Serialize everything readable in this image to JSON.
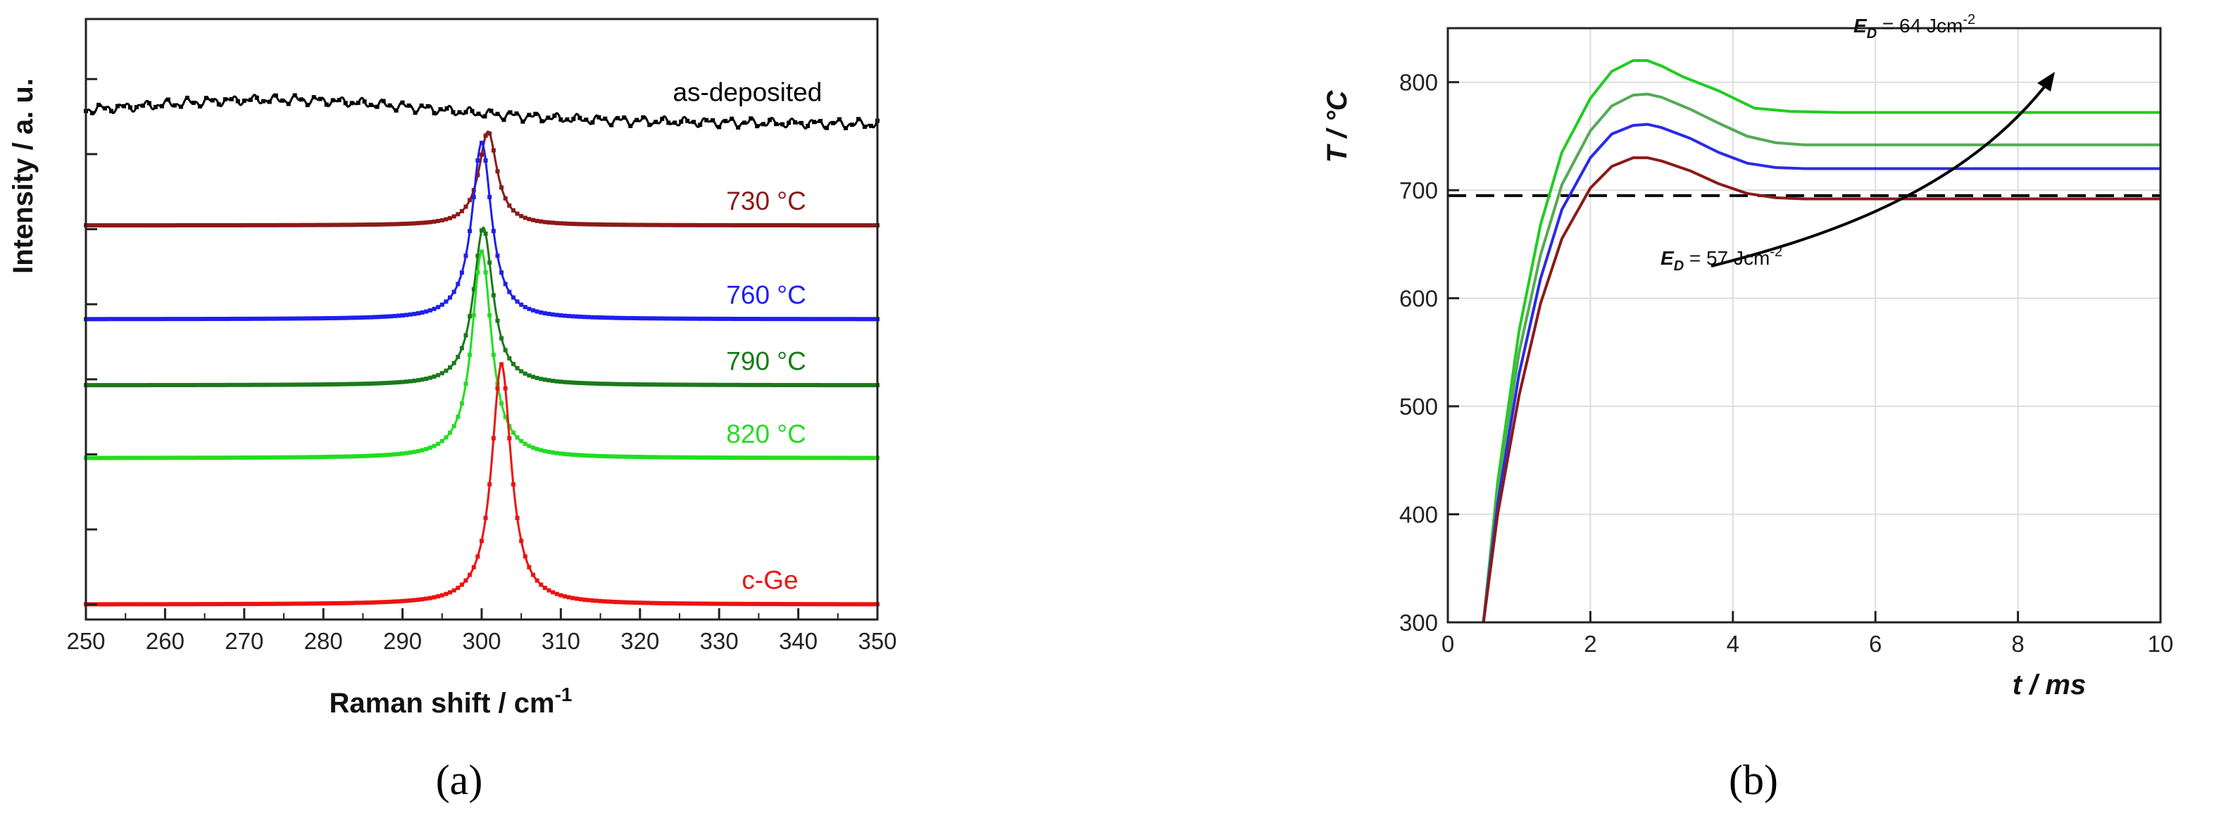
{
  "chart_data": [
    {
      "type": "line",
      "panel_label": "(a)",
      "xlabel": "Raman shift / cm",
      "xlabel_superscript": "-1",
      "ylabel": "Intensity / a. u.",
      "xlim": [
        250,
        350
      ],
      "x_ticks": [
        250,
        260,
        270,
        280,
        290,
        300,
        310,
        320,
        330,
        340,
        350
      ],
      "y_ticks": [
        0,
        1,
        2,
        3,
        4,
        5,
        6,
        7
      ],
      "ylim": [
        -0.2,
        7.8
      ],
      "y_tick_labels_shown": false,
      "grid": false,
      "stacked_offset_spectra": true,
      "series": [
        {
          "name": "as-deposited",
          "color": "#000000",
          "baseline": 6.5,
          "broad_amplitude": 0.25,
          "broad_center": 275,
          "broad_width": 25,
          "tail": -0.1
        },
        {
          "name": "730 °C",
          "color": "#8b1a1a",
          "baseline": 5.05,
          "peak_center": 300.8,
          "peak_height": 1.25,
          "fwhm": 2.8
        },
        {
          "name": "760 °C",
          "color": "#1f1ff0",
          "baseline": 3.8,
          "peak_center": 300.0,
          "peak_height": 2.35,
          "fwhm": 3.0
        },
        {
          "name": "790 °C",
          "color": "#1a7a1a",
          "baseline": 2.92,
          "peak_center": 300.2,
          "peak_height": 2.1,
          "fwhm": 3.0
        },
        {
          "name": "820 °C",
          "color": "#22dd22",
          "baseline": 1.95,
          "peak_center": 300.0,
          "peak_height": 2.75,
          "fwhm": 3.0
        },
        {
          "name": "c-Ge",
          "color": "#ee1111",
          "baseline": 0.0,
          "peak_center": 302.5,
          "peak_height": 3.2,
          "fwhm": 3.0
        }
      ]
    },
    {
      "type": "line",
      "panel_label": "(b)",
      "xlabel": "t / ms",
      "ylabel": "T / °C",
      "xlim": [
        0,
        10
      ],
      "ylim": [
        300,
        850
      ],
      "x_ticks": [
        0,
        2,
        4,
        6,
        8,
        10
      ],
      "y_ticks": [
        300,
        400,
        500,
        600,
        700,
        800
      ],
      "grid": true,
      "reference_line": {
        "y": 695,
        "style": "dashed",
        "color": "#000000"
      },
      "annotations": [
        {
          "text_prefix": "E",
          "text_subscript": "D",
          "text_suffix": " = 64 Jcm",
          "text_superscript": "-2"
        },
        {
          "text_prefix": "E",
          "text_subscript": "D",
          "text_suffix": " = 57 Jcm",
          "text_superscript": "-2"
        }
      ],
      "series": [
        {
          "color": "#22cc22",
          "x": [
            0.5,
            0.7,
            1.0,
            1.3,
            1.6,
            2.0,
            2.3,
            2.6,
            2.8,
            3.0,
            3.3,
            3.8,
            4.3,
            4.8,
            5.5,
            6.5,
            8.0,
            10.0
          ],
          "y": [
            300,
            430,
            570,
            668,
            735,
            785,
            810,
            820,
            820,
            815,
            805,
            792,
            776,
            773,
            772,
            772,
            772,
            772
          ]
        },
        {
          "color": "#55aa55",
          "x": [
            0.5,
            0.7,
            1.0,
            1.3,
            1.6,
            2.0,
            2.3,
            2.6,
            2.8,
            3.0,
            3.4,
            3.8,
            4.2,
            4.6,
            5.0,
            6.0,
            8.0,
            10.0
          ],
          "y": [
            300,
            420,
            550,
            640,
            705,
            755,
            778,
            788,
            789,
            786,
            775,
            762,
            750,
            744,
            742,
            742,
            742,
            742
          ]
        },
        {
          "color": "#2a2ae6",
          "x": [
            0.5,
            0.7,
            1.0,
            1.3,
            1.6,
            2.0,
            2.3,
            2.6,
            2.8,
            3.0,
            3.4,
            3.8,
            4.2,
            4.6,
            5.0,
            6.0,
            8.0,
            10.0
          ],
          "y": [
            300,
            410,
            530,
            618,
            682,
            730,
            752,
            760,
            761,
            758,
            748,
            735,
            725,
            721,
            720,
            720,
            720,
            720
          ]
        },
        {
          "color": "#8b1a1a",
          "x": [
            0.5,
            0.7,
            1.0,
            1.3,
            1.6,
            2.0,
            2.3,
            2.6,
            2.8,
            3.0,
            3.4,
            3.8,
            4.2,
            4.6,
            5.0,
            6.0,
            8.0,
            10.0
          ],
          "y": [
            300,
            400,
            510,
            595,
            655,
            702,
            722,
            730,
            730,
            727,
            718,
            706,
            697,
            693,
            692,
            692,
            692,
            692
          ]
        }
      ]
    }
  ]
}
